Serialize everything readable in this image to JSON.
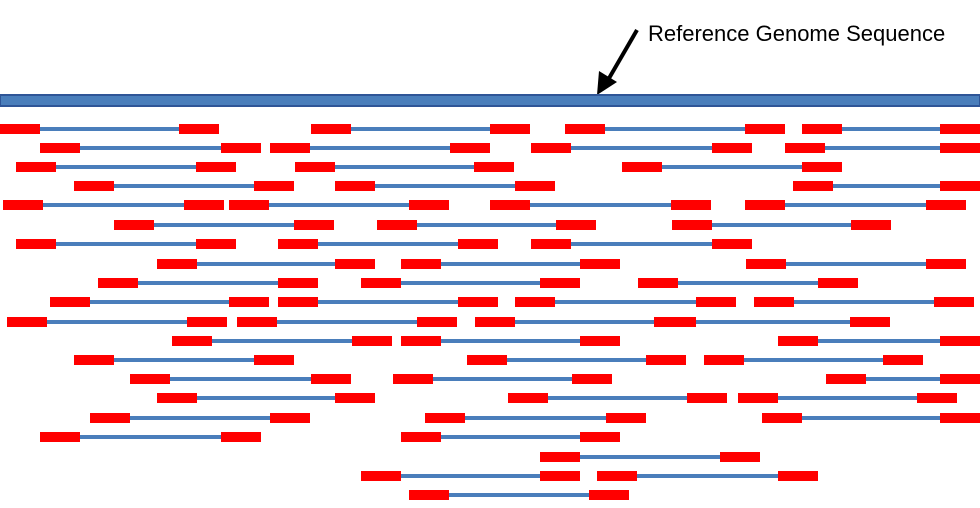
{
  "reference": {
    "label": "Reference Genome Sequence"
  },
  "colors": {
    "reference_fill": "#4A7EBB",
    "reference_stroke": "#2F5597",
    "read_color": "#FF0000",
    "insert_color": "#4A7EBB",
    "arrow_color": "#000000"
  },
  "read_pair_count": 63
}
